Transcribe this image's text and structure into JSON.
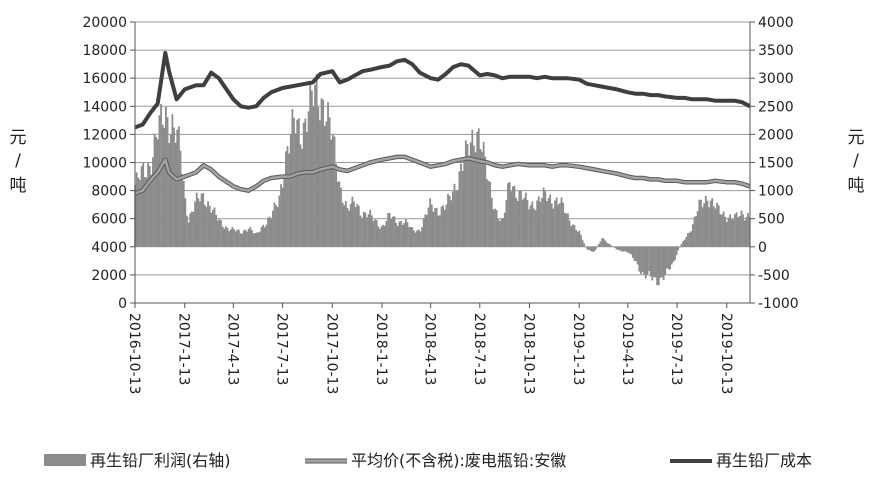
{
  "chart_data": {
    "type": "bar+line",
    "title": "",
    "y_left": {
      "unit_label": [
        "元",
        "/",
        "吨"
      ],
      "min": 0,
      "max": 20000,
      "ticks": [
        "0",
        "2000",
        "4000",
        "6000",
        "8000",
        "10000",
        "12000",
        "14000",
        "16000",
        "18000",
        "20000"
      ]
    },
    "y_right": {
      "unit_label": [
        "元",
        "/",
        "吨"
      ],
      "min": -1000,
      "max": 4000,
      "ticks": [
        "-1000",
        "-500",
        "0",
        "500",
        "1000",
        "1500",
        "2000",
        "2500",
        "3000",
        "3500",
        "4000"
      ]
    },
    "x_tick_labels": [
      "2016-10-13",
      "2017-1-13",
      "2017-4-13",
      "2017-7-13",
      "2017-10-13",
      "2018-1-13",
      "2018-4-13",
      "2018-7-13",
      "2018-10-13",
      "2019-1-13",
      "2019-4-13",
      "2019-7-13",
      "2019-10-13"
    ],
    "x_range": [
      "2016-10-13",
      "2019-11-25"
    ],
    "gridlines": true,
    "legend_position": "bottom",
    "series": [
      {
        "name": "再生铅厂利润(右轴)",
        "kind": "bar",
        "axis": "right",
        "color": "#8c8c8c",
        "points": [
          [
            "2016-10-13",
            1100
          ],
          [
            "2016-10-27",
            1300
          ],
          [
            "2016-11-10",
            1500
          ],
          [
            "2016-11-24",
            2000
          ],
          [
            "2016-12-08",
            2400
          ],
          [
            "2016-12-22",
            2150
          ],
          [
            "2017-01-05",
            1700
          ],
          [
            "2017-01-13",
            900
          ],
          [
            "2017-01-20",
            500
          ],
          [
            "2017-02-03",
            800
          ],
          [
            "2017-02-17",
            900
          ],
          [
            "2017-03-03",
            700
          ],
          [
            "2017-03-17",
            450
          ],
          [
            "2017-03-31",
            350
          ],
          [
            "2017-04-13",
            300
          ],
          [
            "2017-04-27",
            250
          ],
          [
            "2017-05-11",
            350
          ],
          [
            "2017-05-25",
            200
          ],
          [
            "2017-06-08",
            400
          ],
          [
            "2017-06-22",
            550
          ],
          [
            "2017-07-06",
            800
          ],
          [
            "2017-07-20",
            1700
          ],
          [
            "2017-08-03",
            2150
          ],
          [
            "2017-08-17",
            2050
          ],
          [
            "2017-08-31",
            2500
          ],
          [
            "2017-09-14",
            2700
          ],
          [
            "2017-09-28",
            2600
          ],
          [
            "2017-10-13",
            1900
          ],
          [
            "2017-10-27",
            1100
          ],
          [
            "2017-11-10",
            650
          ],
          [
            "2017-11-24",
            800
          ],
          [
            "2017-12-08",
            600
          ],
          [
            "2017-12-22",
            550
          ],
          [
            "2018-01-13",
            350
          ],
          [
            "2018-01-27",
            550
          ],
          [
            "2018-02-10",
            450
          ],
          [
            "2018-02-24",
            450
          ],
          [
            "2018-03-10",
            300
          ],
          [
            "2018-03-24",
            300
          ],
          [
            "2018-04-13",
            750
          ],
          [
            "2018-04-27",
            650
          ],
          [
            "2018-05-11",
            700
          ],
          [
            "2018-05-25",
            1000
          ],
          [
            "2018-06-08",
            1400
          ],
          [
            "2018-06-22",
            1700
          ],
          [
            "2018-07-06",
            2100
          ],
          [
            "2018-07-13",
            2000
          ],
          [
            "2018-07-27",
            1200
          ],
          [
            "2018-08-10",
            700
          ],
          [
            "2018-08-24",
            400
          ],
          [
            "2018-09-07",
            1200
          ],
          [
            "2018-09-21",
            950
          ],
          [
            "2018-10-13",
            750
          ],
          [
            "2018-10-27",
            800
          ],
          [
            "2018-11-10",
            900
          ],
          [
            "2018-11-24",
            850
          ],
          [
            "2018-12-08",
            800
          ],
          [
            "2018-12-22",
            550
          ],
          [
            "2019-01-13",
            250
          ],
          [
            "2019-01-27",
            -50
          ],
          [
            "2019-02-10",
            -100
          ],
          [
            "2019-02-24",
            150
          ],
          [
            "2019-03-10",
            50
          ],
          [
            "2019-03-24",
            -50
          ],
          [
            "2019-04-13",
            -100
          ],
          [
            "2019-04-27",
            -250
          ],
          [
            "2019-05-11",
            -500
          ],
          [
            "2019-05-25",
            -550
          ],
          [
            "2019-06-08",
            -600
          ],
          [
            "2019-06-22",
            -500
          ],
          [
            "2019-07-06",
            -300
          ],
          [
            "2019-07-13",
            -100
          ],
          [
            "2019-07-27",
            150
          ],
          [
            "2019-08-10",
            350
          ],
          [
            "2019-08-24",
            750
          ],
          [
            "2019-09-07",
            900
          ],
          [
            "2019-09-21",
            700
          ],
          [
            "2019-10-13",
            550
          ],
          [
            "2019-10-27",
            500
          ],
          [
            "2019-11-10",
            600
          ],
          [
            "2019-11-25",
            550
          ]
        ]
      },
      {
        "name": "平均价(不含税):废电瓶铅:安徽",
        "kind": "line",
        "axis": "left",
        "color": "#a3a3a3",
        "points": [
          [
            "2016-10-13",
            7800
          ],
          [
            "2016-10-27",
            8000
          ],
          [
            "2016-11-10",
            8700
          ],
          [
            "2016-11-24",
            9300
          ],
          [
            "2016-12-08",
            10200
          ],
          [
            "2016-12-15",
            9300
          ],
          [
            "2016-12-29",
            8800
          ],
          [
            "2017-01-13",
            9000
          ],
          [
            "2017-02-03",
            9300
          ],
          [
            "2017-02-17",
            9800
          ],
          [
            "2017-03-03",
            9500
          ],
          [
            "2017-03-17",
            9000
          ],
          [
            "2017-04-13",
            8300
          ],
          [
            "2017-04-27",
            8100
          ],
          [
            "2017-05-11",
            8000
          ],
          [
            "2017-05-25",
            8300
          ],
          [
            "2017-06-08",
            8700
          ],
          [
            "2017-06-22",
            8900
          ],
          [
            "2017-07-13",
            9000
          ],
          [
            "2017-07-27",
            9000
          ],
          [
            "2017-08-10",
            9200
          ],
          [
            "2017-08-24",
            9300
          ],
          [
            "2017-09-07",
            9300
          ],
          [
            "2017-09-21",
            9500
          ],
          [
            "2017-10-13",
            9700
          ],
          [
            "2017-10-27",
            9500
          ],
          [
            "2017-11-10",
            9400
          ],
          [
            "2017-11-24",
            9600
          ],
          [
            "2017-12-08",
            9800
          ],
          [
            "2017-12-22",
            10000
          ],
          [
            "2018-01-13",
            10200
          ],
          [
            "2018-01-27",
            10300
          ],
          [
            "2018-02-10",
            10400
          ],
          [
            "2018-02-24",
            10400
          ],
          [
            "2018-03-10",
            10200
          ],
          [
            "2018-03-24",
            10000
          ],
          [
            "2018-04-13",
            9700
          ],
          [
            "2018-04-27",
            9800
          ],
          [
            "2018-05-11",
            9900
          ],
          [
            "2018-05-25",
            10100
          ],
          [
            "2018-06-08",
            10200
          ],
          [
            "2018-06-22",
            10300
          ],
          [
            "2018-07-13",
            10100
          ],
          [
            "2018-07-27",
            10000
          ],
          [
            "2018-08-10",
            9800
          ],
          [
            "2018-08-24",
            9700
          ],
          [
            "2018-09-07",
            9800
          ],
          [
            "2018-09-21",
            9900
          ],
          [
            "2018-10-13",
            9800
          ],
          [
            "2018-10-27",
            9800
          ],
          [
            "2018-11-10",
            9800
          ],
          [
            "2018-11-24",
            9700
          ],
          [
            "2018-12-08",
            9800
          ],
          [
            "2018-12-22",
            9800
          ],
          [
            "2019-01-13",
            9700
          ],
          [
            "2019-01-27",
            9600
          ],
          [
            "2019-02-10",
            9500
          ],
          [
            "2019-02-24",
            9400
          ],
          [
            "2019-03-10",
            9300
          ],
          [
            "2019-03-24",
            9200
          ],
          [
            "2019-04-13",
            9000
          ],
          [
            "2019-04-27",
            8900
          ],
          [
            "2019-05-11",
            8900
          ],
          [
            "2019-05-25",
            8800
          ],
          [
            "2019-06-08",
            8800
          ],
          [
            "2019-06-22",
            8700
          ],
          [
            "2019-07-13",
            8700
          ],
          [
            "2019-07-27",
            8600
          ],
          [
            "2019-08-10",
            8600
          ],
          [
            "2019-08-24",
            8600
          ],
          [
            "2019-09-07",
            8600
          ],
          [
            "2019-09-21",
            8700
          ],
          [
            "2019-10-13",
            8600
          ],
          [
            "2019-10-27",
            8600
          ],
          [
            "2019-11-10",
            8500
          ],
          [
            "2019-11-25",
            8300
          ]
        ]
      },
      {
        "name": "再生铅厂成本",
        "kind": "line",
        "axis": "left",
        "color": "#3f3f3f",
        "points": [
          [
            "2016-10-13",
            12500
          ],
          [
            "2016-10-27",
            12700
          ],
          [
            "2016-11-10",
            13500
          ],
          [
            "2016-11-24",
            14200
          ],
          [
            "2016-12-08",
            17800
          ],
          [
            "2016-12-15",
            16500
          ],
          [
            "2016-12-29",
            14500
          ],
          [
            "2017-01-13",
            15200
          ],
          [
            "2017-02-03",
            15500
          ],
          [
            "2017-02-17",
            15500
          ],
          [
            "2017-03-03",
            16400
          ],
          [
            "2017-03-17",
            16000
          ],
          [
            "2017-04-13",
            14500
          ],
          [
            "2017-04-27",
            14000
          ],
          [
            "2017-05-11",
            13900
          ],
          [
            "2017-05-25",
            14000
          ],
          [
            "2017-06-08",
            14600
          ],
          [
            "2017-06-22",
            15000
          ],
          [
            "2017-07-13",
            15300
          ],
          [
            "2017-07-27",
            15400
          ],
          [
            "2017-08-10",
            15500
          ],
          [
            "2017-08-24",
            15600
          ],
          [
            "2017-09-07",
            15700
          ],
          [
            "2017-09-21",
            16300
          ],
          [
            "2017-10-13",
            16500
          ],
          [
            "2017-10-27",
            15700
          ],
          [
            "2017-11-10",
            15900
          ],
          [
            "2017-11-24",
            16200
          ],
          [
            "2017-12-08",
            16500
          ],
          [
            "2017-12-22",
            16600
          ],
          [
            "2018-01-13",
            16800
          ],
          [
            "2018-01-27",
            16900
          ],
          [
            "2018-02-10",
            17200
          ],
          [
            "2018-02-24",
            17300
          ],
          [
            "2018-03-10",
            17000
          ],
          [
            "2018-03-24",
            16400
          ],
          [
            "2018-04-13",
            16000
          ],
          [
            "2018-04-27",
            15900
          ],
          [
            "2018-05-11",
            16300
          ],
          [
            "2018-05-25",
            16800
          ],
          [
            "2018-06-08",
            17000
          ],
          [
            "2018-06-22",
            16900
          ],
          [
            "2018-07-13",
            16200
          ],
          [
            "2018-07-27",
            16300
          ],
          [
            "2018-08-10",
            16200
          ],
          [
            "2018-08-24",
            16000
          ],
          [
            "2018-09-07",
            16100
          ],
          [
            "2018-09-21",
            16100
          ],
          [
            "2018-10-13",
            16100
          ],
          [
            "2018-10-27",
            16000
          ],
          [
            "2018-11-10",
            16100
          ],
          [
            "2018-11-24",
            16000
          ],
          [
            "2018-12-08",
            16000
          ],
          [
            "2018-12-22",
            16000
          ],
          [
            "2019-01-13",
            15900
          ],
          [
            "2019-01-27",
            15600
          ],
          [
            "2019-02-10",
            15500
          ],
          [
            "2019-02-24",
            15400
          ],
          [
            "2019-03-10",
            15300
          ],
          [
            "2019-03-24",
            15200
          ],
          [
            "2019-04-13",
            15000
          ],
          [
            "2019-04-27",
            14900
          ],
          [
            "2019-05-11",
            14900
          ],
          [
            "2019-05-25",
            14800
          ],
          [
            "2019-06-08",
            14800
          ],
          [
            "2019-06-22",
            14700
          ],
          [
            "2019-07-13",
            14600
          ],
          [
            "2019-07-27",
            14600
          ],
          [
            "2019-08-10",
            14500
          ],
          [
            "2019-08-24",
            14500
          ],
          [
            "2019-09-07",
            14500
          ],
          [
            "2019-09-21",
            14400
          ],
          [
            "2019-10-13",
            14400
          ],
          [
            "2019-10-27",
            14400
          ],
          [
            "2019-11-10",
            14300
          ],
          [
            "2019-11-25",
            14000
          ]
        ]
      }
    ]
  }
}
